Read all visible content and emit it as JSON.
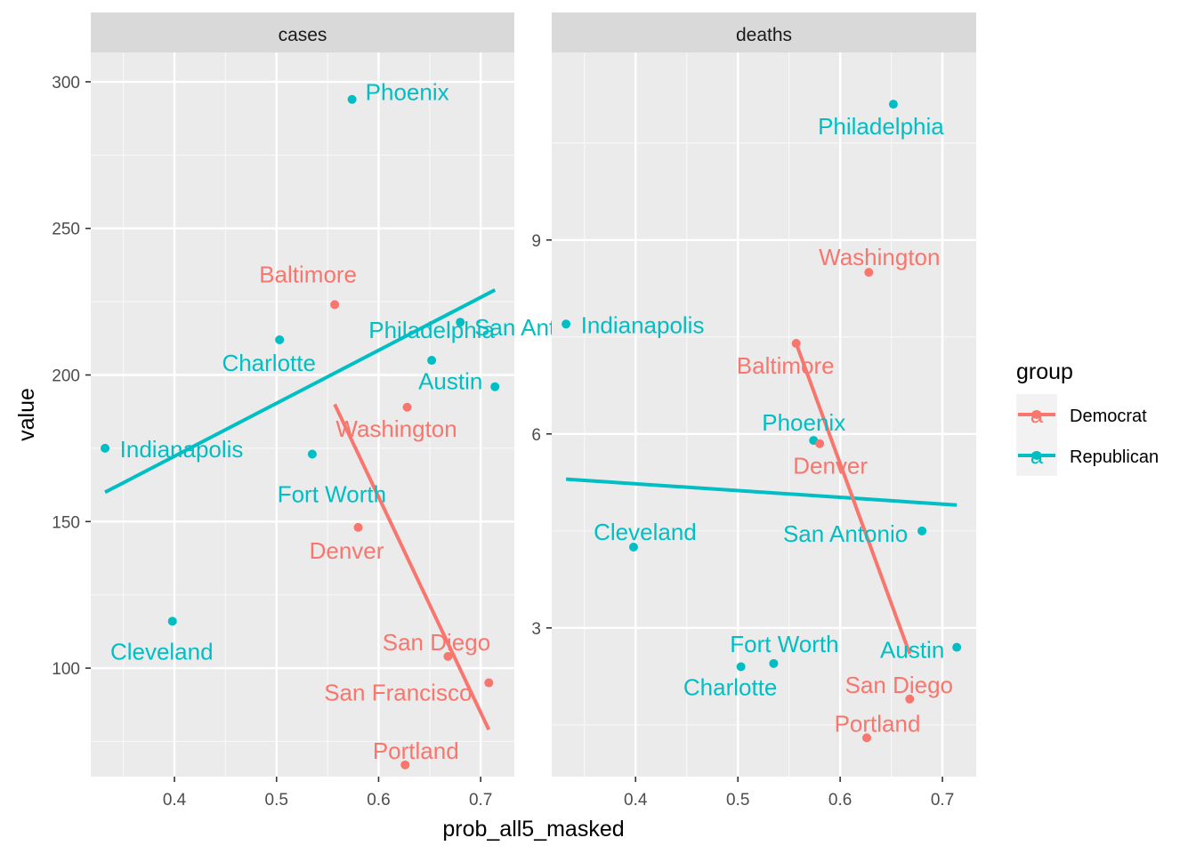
{
  "chart_data": {
    "type": "scatter",
    "xlabel": "prob_all5_masked",
    "ylabel": "value",
    "legend": {
      "title": "group",
      "position": "right",
      "key_glyph": "a",
      "entries": [
        {
          "name": "Democrat",
          "color": "#F8766D"
        },
        {
          "name": "Republican",
          "color": "#00BFC4"
        }
      ]
    },
    "x_ticks": [
      "0.4",
      "0.5",
      "0.6",
      "0.7"
    ],
    "xlim": [
      0.318,
      0.733
    ],
    "grid": true,
    "panels": [
      {
        "title": "cases",
        "ylim": [
          63,
          310
        ],
        "y_ticks": [
          "100",
          "150",
          "200",
          "250",
          "300"
        ],
        "points": [
          {
            "label": "Phoenix",
            "group": "Republican",
            "x": 0.574,
            "y": 294
          },
          {
            "label": "Baltimore",
            "group": "Democrat",
            "x": 0.557,
            "y": 224
          },
          {
            "label": "San Antonio",
            "group": "Republican",
            "x": 0.68,
            "y": 218
          },
          {
            "label": "Charlotte",
            "group": "Republican",
            "x": 0.503,
            "y": 212
          },
          {
            "label": "Philadelphia",
            "group": "Republican",
            "x": 0.652,
            "y": 205
          },
          {
            "label": "Austin",
            "group": "Republican",
            "x": 0.714,
            "y": 196
          },
          {
            "label": "Washington",
            "group": "Democrat",
            "x": 0.628,
            "y": 189
          },
          {
            "label": "Indianapolis",
            "group": "Republican",
            "x": 0.332,
            "y": 175
          },
          {
            "label": "Fort Worth",
            "group": "Republican",
            "x": 0.535,
            "y": 173
          },
          {
            "label": "Denver",
            "group": "Democrat",
            "x": 0.58,
            "y": 148
          },
          {
            "label": "Cleveland",
            "group": "Republican",
            "x": 0.398,
            "y": 116
          },
          {
            "label": "San Diego",
            "group": "Democrat",
            "x": 0.668,
            "y": 104
          },
          {
            "label": "San Francisco",
            "group": "Democrat",
            "x": 0.708,
            "y": 95
          },
          {
            "label": "Portland",
            "group": "Democrat",
            "x": 0.626,
            "y": 67
          }
        ],
        "fits": [
          {
            "group": "Republican",
            "x": [
              0.332,
              0.714
            ],
            "y": [
              160,
              229
            ]
          },
          {
            "group": "Democrat",
            "x": [
              0.557,
              0.708
            ],
            "y": [
              190,
              79
            ]
          }
        ]
      },
      {
        "title": "deaths",
        "ylim": [
          0.7,
          11.9
        ],
        "y_ticks": [
          "3",
          "6",
          "9"
        ],
        "points": [
          {
            "label": "Philadelphia",
            "group": "Republican",
            "x": 0.652,
            "y": 11.1
          },
          {
            "label": "Washington",
            "group": "Democrat",
            "x": 0.628,
            "y": 8.5
          },
          {
            "label": "Indianapolis",
            "group": "Republican",
            "x": 0.332,
            "y": 7.7
          },
          {
            "label": "Baltimore",
            "group": "Democrat",
            "x": 0.557,
            "y": 7.4
          },
          {
            "label": "Phoenix",
            "group": "Republican",
            "x": 0.574,
            "y": 5.9
          },
          {
            "label": "Denver",
            "group": "Democrat",
            "x": 0.58,
            "y": 5.85
          },
          {
            "label": "San Antonio",
            "group": "Republican",
            "x": 0.68,
            "y": 4.5
          },
          {
            "label": "Cleveland",
            "group": "Republican",
            "x": 0.398,
            "y": 4.25
          },
          {
            "label": "Austin",
            "group": "Republican",
            "x": 0.714,
            "y": 2.7
          },
          {
            "label": "Fort Worth",
            "group": "Republican",
            "x": 0.535,
            "y": 2.45
          },
          {
            "label": "Charlotte",
            "group": "Republican",
            "x": 0.503,
            "y": 2.4
          },
          {
            "label": "San Diego",
            "group": "Democrat",
            "x": 0.668,
            "y": 1.9
          },
          {
            "label": "Portland",
            "group": "Democrat",
            "x": 0.626,
            "y": 1.3
          }
        ],
        "fits": [
          {
            "group": "Republican",
            "x": [
              0.332,
              0.714
            ],
            "y": [
              5.3,
              4.9
            ]
          },
          {
            "group": "Democrat",
            "x": [
              0.557,
              0.668
            ],
            "y": [
              7.4,
              2.6
            ]
          }
        ]
      }
    ]
  }
}
